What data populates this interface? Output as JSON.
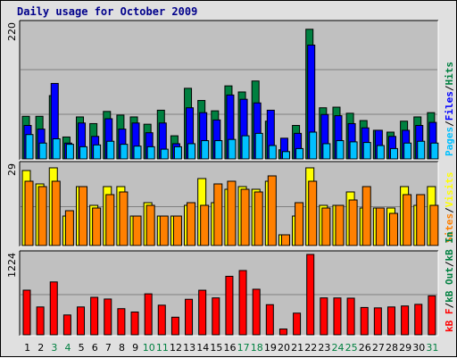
{
  "title": "Daily usage for October 2009",
  "colors": {
    "hits": "#008040",
    "files": "#0000ff",
    "pages": "#00c0ff",
    "visits": "#ffff00",
    "sites": "#ff8000",
    "kbin": "#ff0000",
    "weekend": "#008040",
    "weekday": "#000000",
    "panel_bg": "#c0c0c0",
    "frame_bg": "#e0e0e0"
  },
  "side_labels": {
    "top": [
      {
        "text": "Pages",
        "color": "#00c0ff"
      },
      {
        "text": "/",
        "color": "#000000"
      },
      {
        "text": "Files",
        "color": "#0000ff"
      },
      {
        "text": "/",
        "color": "#000000"
      },
      {
        "text": "Hits",
        "color": "#008040"
      }
    ],
    "middle": [
      {
        "text": "Sites",
        "color": "#ff8000"
      },
      {
        "text": "/",
        "color": "#000000"
      },
      {
        "text": "Visits",
        "color": "#ffff00"
      }
    ],
    "bottom": [
      {
        "text": "kB F",
        "color": "#ff0000"
      },
      {
        "text": "/",
        "color": "#000000"
      },
      {
        "text": "kB Out",
        "color": "#008040"
      },
      {
        "text": "/",
        "color": "#000000"
      },
      {
        "text": "kB In",
        "color": "#008040"
      }
    ]
  },
  "chart_data": [
    {
      "type": "bar",
      "panel": "top",
      "ymax_label": "220",
      "ylim": [
        0,
        220
      ],
      "categories": [
        "1",
        "2",
        "3",
        "4",
        "5",
        "6",
        "7",
        "8",
        "9",
        "10",
        "11",
        "12",
        "13",
        "14",
        "15",
        "16",
        "17",
        "18",
        "19",
        "20",
        "21",
        "22",
        "23",
        "24",
        "25",
        "26",
        "27",
        "28",
        "29",
        "30",
        "31"
      ],
      "weekend_days": [
        3,
        4,
        10,
        11,
        17,
        18,
        24,
        25,
        31
      ],
      "series": [
        {
          "name": "Hits",
          "values": [
            70,
            70,
            104,
            36,
            69,
            58,
            78,
            72,
            69,
            57,
            80,
            38,
            116,
            96,
            79,
            120,
            110,
            128,
            62,
            15,
            55,
            213,
            84,
            85,
            75,
            63,
            47,
            44,
            62,
            69,
            76
          ]
        },
        {
          "name": "Files",
          "values": [
            55,
            49,
            124,
            26,
            59,
            37,
            66,
            49,
            59,
            43,
            59,
            25,
            84,
            76,
            64,
            105,
            98,
            92,
            80,
            34,
            42,
            187,
            73,
            71,
            58,
            51,
            47,
            37,
            47,
            55,
            60
          ]
        },
        {
          "name": "Pages",
          "values": [
            40,
            26,
            33,
            24,
            20,
            23,
            29,
            24,
            21,
            20,
            16,
            20,
            25,
            30,
            30,
            32,
            38,
            42,
            22,
            12,
            17,
            44,
            25,
            30,
            28,
            27,
            22,
            17,
            26,
            29,
            26
          ]
        }
      ]
    },
    {
      "type": "bar",
      "panel": "middle",
      "ymax_label": "29",
      "ylim": [
        0,
        29
      ],
      "categories": [
        "1",
        "2",
        "3",
        "4",
        "5",
        "6",
        "7",
        "8",
        "9",
        "10",
        "11",
        "12",
        "13",
        "14",
        "15",
        "16",
        "17",
        "18",
        "19",
        "20",
        "21",
        "22",
        "23",
        "24",
        "25",
        "26",
        "27",
        "28",
        "29",
        "30",
        "31"
      ],
      "series": [
        {
          "name": "Visits",
          "values": [
            28,
            23,
            29,
            11,
            22,
            15,
            22,
            22,
            11,
            16,
            11,
            11,
            15,
            25,
            16,
            21,
            22,
            21,
            24,
            4,
            11,
            29,
            15,
            15,
            20,
            14,
            14,
            14,
            22,
            15,
            22
          ]
        },
        {
          "name": "Sites",
          "values": [
            24,
            22,
            24,
            13,
            22,
            14,
            19,
            20,
            11,
            15,
            11,
            11,
            16,
            15,
            23,
            24,
            21,
            20,
            26,
            4,
            16,
            24,
            14,
            15,
            17,
            22,
            14,
            12,
            19,
            19,
            15
          ]
        }
      ]
    },
    {
      "type": "bar",
      "panel": "bottom",
      "ymax_label": "1224",
      "ylim": [
        0,
        1224
      ],
      "categories": [
        "1",
        "2",
        "3",
        "4",
        "5",
        "6",
        "7",
        "8",
        "9",
        "10",
        "11",
        "12",
        "13",
        "14",
        "15",
        "16",
        "17",
        "18",
        "19",
        "20",
        "21",
        "22",
        "23",
        "24",
        "25",
        "26",
        "27",
        "28",
        "29",
        "30",
        "31"
      ],
      "series": [
        {
          "name": "kB In",
          "values": [
            680,
            424,
            805,
            302,
            424,
            571,
            545,
            398,
            347,
            624,
            451,
            268,
            541,
            679,
            562,
            891,
            979,
            694,
            459,
            88,
            330,
            1224,
            562,
            561,
            558,
            416,
            410,
            424,
            439,
            464,
            594
          ]
        }
      ]
    }
  ]
}
